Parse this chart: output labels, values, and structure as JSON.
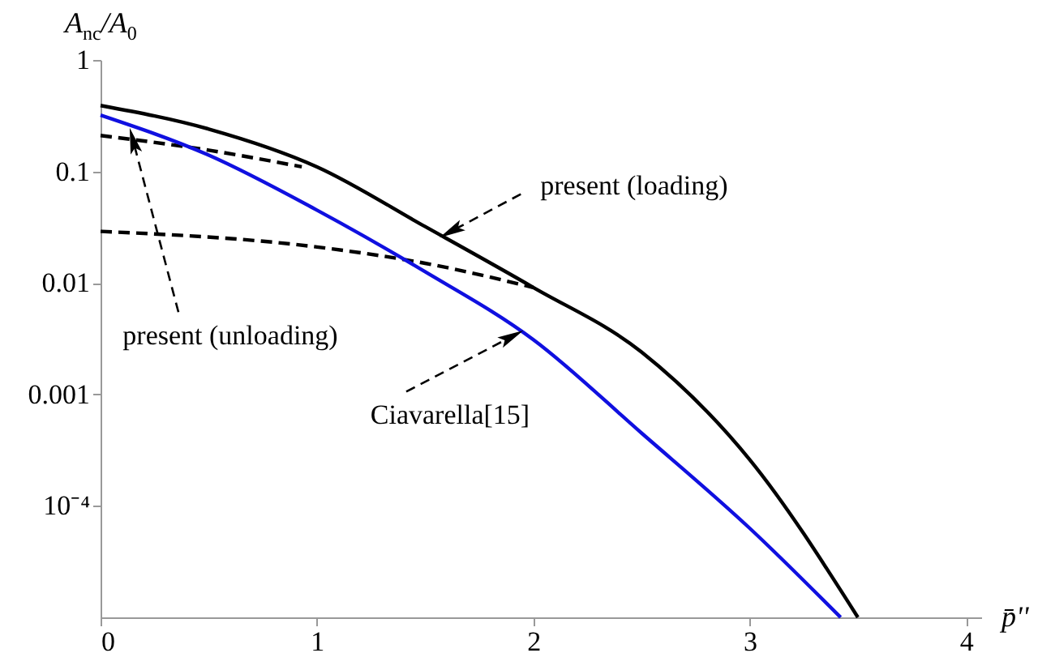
{
  "chart_data": {
    "type": "line",
    "xlabel": "p̄''",
    "ylabel": "A$_{nc}$/A$_{0}$",
    "log": "y",
    "marker": "none",
    "xlim": [
      0,
      4.07
    ],
    "xticks": [
      0,
      1,
      2,
      3,
      4
    ],
    "ylim": [
      1e-05,
      1
    ],
    "yticks": [
      1,
      0.1,
      0.01,
      0.001,
      {
        "value": 0.0001,
        "label": "10⁻⁴"
      }
    ],
    "series": [
      {
        "color": "#000000",
        "line_style": "solid",
        "x": [
          0,
          0.5,
          1,
          1.5,
          2,
          2.5,
          3,
          3.5
        ],
        "values": [
          0.39,
          0.24,
          0.11,
          0.032,
          0.0091,
          0.0024,
          0.00026,
          1e-05
        ]
      },
      {
        "color": "#000000",
        "line_style": "dashed",
        "x": [
          0,
          0.5,
          0.93
        ],
        "values": [
          0.21,
          0.155,
          0.11
        ]
      },
      {
        "color": "#000000",
        "line_style": "dashed",
        "x": [
          0,
          1,
          1.5,
          2
        ],
        "values": [
          0.029,
          0.021,
          0.015,
          0.0091
        ]
      },
      {
        "color": "#1010e0",
        "line_style": "solid",
        "x": [
          0,
          0.5,
          1,
          1.5,
          2,
          2.5,
          3,
          3.42
        ],
        "values": [
          0.32,
          0.14,
          0.045,
          0.0126,
          0.0031,
          0.00045,
          6.3e-05,
          1e-05
        ]
      }
    ],
    "annotations": [
      {
        "text": "present (loading)",
        "x": 1.62,
        "y": 0.029
      },
      {
        "text": "present (unloading)",
        "x": 0.15,
        "y": 0.19
      },
      {
        "text": "Ciavarella[15]",
        "x": 1.9,
        "y": 0.0033
      }
    ]
  }
}
